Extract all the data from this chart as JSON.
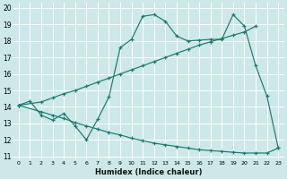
{
  "bg_color": "#cce8e8",
  "line_color": "#1a7a6e",
  "grid_color": "#b0d8d8",
  "xlabel": "Humidex (Indice chaleur)",
  "xlim": [
    -0.5,
    23.5
  ],
  "ylim": [
    10.8,
    20.3
  ],
  "xtick_vals": [
    0,
    1,
    2,
    3,
    4,
    5,
    6,
    7,
    8,
    9,
    10,
    11,
    12,
    13,
    14,
    15,
    16,
    17,
    18,
    19,
    20,
    21,
    22,
    23
  ],
  "ytick_vals": [
    11,
    12,
    13,
    14,
    15,
    16,
    17,
    18,
    19,
    20
  ],
  "line1_x": [
    0,
    1,
    2,
    3,
    4,
    5,
    6,
    7,
    8,
    9,
    10,
    11,
    12,
    13,
    14,
    15,
    16,
    17,
    18,
    19,
    20,
    21,
    22,
    23
  ],
  "line1_y": [
    14.1,
    14.35,
    13.5,
    13.2,
    13.6,
    12.85,
    12.0,
    13.25,
    14.6,
    17.6,
    18.1,
    19.5,
    19.6,
    19.2,
    18.3,
    18.0,
    18.05,
    18.1,
    18.1,
    19.6,
    18.9,
    16.5,
    14.65,
    11.5
  ],
  "line2_x": [
    0,
    2,
    3,
    4,
    5,
    6,
    7,
    8,
    9,
    10,
    11,
    12,
    13,
    14,
    15,
    16,
    17,
    18,
    19,
    20,
    21
  ],
  "line2_y": [
    14.1,
    14.3,
    14.55,
    14.8,
    15.0,
    15.25,
    15.5,
    15.75,
    16.0,
    16.25,
    16.5,
    16.75,
    17.0,
    17.25,
    17.5,
    17.75,
    17.95,
    18.15,
    18.35,
    18.55,
    18.9
  ],
  "line3_x": [
    0,
    2,
    3,
    4,
    5,
    6,
    7,
    8,
    9,
    10,
    11,
    12,
    13,
    14,
    15,
    16,
    17,
    18,
    19,
    20,
    21,
    22,
    23
  ],
  "line3_y": [
    14.1,
    13.7,
    13.5,
    13.3,
    13.05,
    12.85,
    12.65,
    12.45,
    12.3,
    12.1,
    11.95,
    11.8,
    11.7,
    11.6,
    11.5,
    11.4,
    11.35,
    11.3,
    11.25,
    11.2,
    11.2,
    11.2,
    11.5
  ]
}
